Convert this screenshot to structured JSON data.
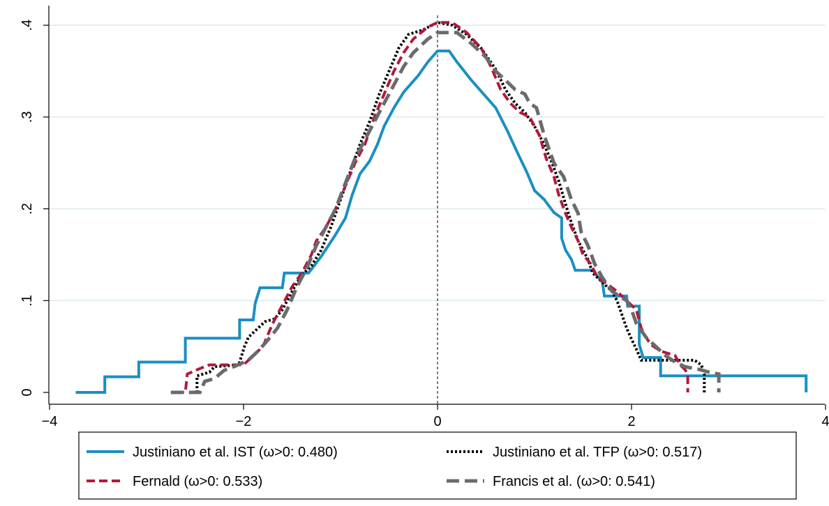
{
  "chart_data": {
    "type": "line",
    "title": "",
    "xlabel": "",
    "ylabel": "",
    "xlim": [
      -4,
      4
    ],
    "ylim": [
      0,
      0.4
    ],
    "x_ticks": [
      -4,
      -2,
      0,
      2,
      4
    ],
    "x_tick_labels": [
      "−4",
      "−2",
      "0",
      "2",
      "4"
    ],
    "y_ticks": [
      0,
      0.1,
      0.2,
      0.3,
      0.4
    ],
    "y_tick_labels": [
      "0",
      ".1",
      ".2",
      ".3",
      ".4"
    ],
    "grid": "horizontal",
    "reference_line": {
      "x": 0,
      "style": "dashed"
    },
    "legend_position": "bottom",
    "series": [
      {
        "name": "Justiniano et al. IST (ω>0: 0.480)",
        "color": "#1b8fc2",
        "style": "solid",
        "points": [
          [
            -3.73,
            0.0
          ],
          [
            -3.43,
            0.0
          ],
          [
            -3.43,
            0.017
          ],
          [
            -3.08,
            0.017
          ],
          [
            -3.08,
            0.033
          ],
          [
            -2.6,
            0.033
          ],
          [
            -2.6,
            0.059
          ],
          [
            -2.04,
            0.059
          ],
          [
            -2.04,
            0.079
          ],
          [
            -1.9,
            0.079
          ],
          [
            -1.88,
            0.097
          ],
          [
            -1.83,
            0.114
          ],
          [
            -1.6,
            0.114
          ],
          [
            -1.58,
            0.13
          ],
          [
            -1.33,
            0.13
          ],
          [
            -1.2,
            0.148
          ],
          [
            -1.05,
            0.172
          ],
          [
            -0.95,
            0.19
          ],
          [
            -0.88,
            0.215
          ],
          [
            -0.8,
            0.238
          ],
          [
            -0.7,
            0.252
          ],
          [
            -0.62,
            0.27
          ],
          [
            -0.55,
            0.29
          ],
          [
            -0.45,
            0.31
          ],
          [
            -0.35,
            0.327
          ],
          [
            -0.2,
            0.345
          ],
          [
            -0.1,
            0.36
          ],
          [
            0.0,
            0.372
          ],
          [
            0.12,
            0.372
          ],
          [
            0.2,
            0.36
          ],
          [
            0.35,
            0.34
          ],
          [
            0.5,
            0.322
          ],
          [
            0.6,
            0.31
          ],
          [
            0.72,
            0.285
          ],
          [
            0.82,
            0.262
          ],
          [
            0.92,
            0.24
          ],
          [
            1.0,
            0.22
          ],
          [
            1.1,
            0.21
          ],
          [
            1.2,
            0.196
          ],
          [
            1.28,
            0.19
          ],
          [
            1.28,
            0.168
          ],
          [
            1.32,
            0.155
          ],
          [
            1.38,
            0.145
          ],
          [
            1.42,
            0.133
          ],
          [
            1.6,
            0.133
          ],
          [
            1.7,
            0.12
          ],
          [
            1.72,
            0.105
          ],
          [
            1.95,
            0.105
          ],
          [
            1.96,
            0.094
          ],
          [
            2.08,
            0.094
          ],
          [
            2.08,
            0.052
          ],
          [
            2.12,
            0.038
          ],
          [
            2.3,
            0.038
          ],
          [
            2.3,
            0.018
          ],
          [
            3.8,
            0.018
          ],
          [
            3.8,
            0.0
          ]
        ]
      },
      {
        "name": "Justiniano et al. TFP (ω>0: 0.517)",
        "color": "#000000",
        "style": "dotted",
        "points": [
          [
            -2.48,
            0.0
          ],
          [
            -2.48,
            0.018
          ],
          [
            -2.35,
            0.022
          ],
          [
            -2.3,
            0.028
          ],
          [
            -2.05,
            0.03
          ],
          [
            -1.99,
            0.05
          ],
          [
            -1.95,
            0.06
          ],
          [
            -1.85,
            0.07
          ],
          [
            -1.78,
            0.077
          ],
          [
            -1.68,
            0.08
          ],
          [
            -1.6,
            0.09
          ],
          [
            -1.5,
            0.11
          ],
          [
            -1.4,
            0.128
          ],
          [
            -1.3,
            0.138
          ],
          [
            -1.2,
            0.155
          ],
          [
            -1.1,
            0.18
          ],
          [
            -1.0,
            0.21
          ],
          [
            -0.9,
            0.24
          ],
          [
            -0.8,
            0.27
          ],
          [
            -0.7,
            0.295
          ],
          [
            -0.6,
            0.325
          ],
          [
            -0.5,
            0.35
          ],
          [
            -0.4,
            0.375
          ],
          [
            -0.3,
            0.39
          ],
          [
            -0.15,
            0.395
          ],
          [
            0.0,
            0.403
          ],
          [
            0.15,
            0.4
          ],
          [
            0.3,
            0.39
          ],
          [
            0.45,
            0.375
          ],
          [
            0.6,
            0.352
          ],
          [
            0.7,
            0.33
          ],
          [
            0.8,
            0.315
          ],
          [
            0.9,
            0.305
          ],
          [
            1.0,
            0.29
          ],
          [
            1.1,
            0.27
          ],
          [
            1.18,
            0.25
          ],
          [
            1.25,
            0.23
          ],
          [
            1.32,
            0.205
          ],
          [
            1.38,
            0.185
          ],
          [
            1.45,
            0.165
          ],
          [
            1.55,
            0.145
          ],
          [
            1.6,
            0.13
          ],
          [
            1.7,
            0.12
          ],
          [
            1.8,
            0.11
          ],
          [
            1.85,
            0.1
          ],
          [
            1.9,
            0.085
          ],
          [
            1.95,
            0.07
          ],
          [
            2.0,
            0.058
          ],
          [
            2.05,
            0.047
          ],
          [
            2.1,
            0.035
          ],
          [
            2.3,
            0.035
          ],
          [
            2.5,
            0.035
          ],
          [
            2.65,
            0.035
          ],
          [
            2.72,
            0.03
          ],
          [
            2.75,
            0.02
          ],
          [
            2.75,
            0.0
          ]
        ]
      },
      {
        "name": "Fernald (ω>0: 0.533)",
        "color": "#b01a3c",
        "style": "dashed",
        "points": [
          [
            -2.7,
            0.0
          ],
          [
            -2.6,
            0.0
          ],
          [
            -2.58,
            0.02
          ],
          [
            -2.45,
            0.026
          ],
          [
            -2.35,
            0.03
          ],
          [
            -2.0,
            0.03
          ],
          [
            -1.9,
            0.04
          ],
          [
            -1.8,
            0.05
          ],
          [
            -1.7,
            0.075
          ],
          [
            -1.6,
            0.095
          ],
          [
            -1.5,
            0.115
          ],
          [
            -1.4,
            0.13
          ],
          [
            -1.3,
            0.15
          ],
          [
            -1.25,
            0.165
          ],
          [
            -1.15,
            0.18
          ],
          [
            -1.05,
            0.2
          ],
          [
            -0.95,
            0.225
          ],
          [
            -0.85,
            0.25
          ],
          [
            -0.75,
            0.27
          ],
          [
            -0.65,
            0.3
          ],
          [
            -0.55,
            0.325
          ],
          [
            -0.45,
            0.35
          ],
          [
            -0.35,
            0.37
          ],
          [
            -0.25,
            0.385
          ],
          [
            -0.1,
            0.398
          ],
          [
            0.0,
            0.403
          ],
          [
            0.15,
            0.403
          ],
          [
            0.3,
            0.392
          ],
          [
            0.45,
            0.375
          ],
          [
            0.55,
            0.355
          ],
          [
            0.65,
            0.33
          ],
          [
            0.75,
            0.315
          ],
          [
            0.85,
            0.305
          ],
          [
            0.95,
            0.3
          ],
          [
            1.05,
            0.28
          ],
          [
            1.12,
            0.255
          ],
          [
            1.2,
            0.235
          ],
          [
            1.25,
            0.215
          ],
          [
            1.32,
            0.195
          ],
          [
            1.38,
            0.18
          ],
          [
            1.45,
            0.165
          ],
          [
            1.5,
            0.15
          ],
          [
            1.58,
            0.14
          ],
          [
            1.65,
            0.125
          ],
          [
            1.75,
            0.118
          ],
          [
            1.85,
            0.11
          ],
          [
            1.95,
            0.1
          ],
          [
            2.05,
            0.09
          ],
          [
            2.1,
            0.07
          ],
          [
            2.15,
            0.06
          ],
          [
            2.2,
            0.052
          ],
          [
            2.3,
            0.045
          ],
          [
            2.45,
            0.04
          ],
          [
            2.5,
            0.03
          ],
          [
            2.55,
            0.025
          ],
          [
            2.58,
            0.02
          ],
          [
            2.58,
            0.0
          ]
        ]
      },
      {
        "name": "Francis et al. (ω>0: 0.541)",
        "color": "#6b6b6b",
        "style": "longdash",
        "points": [
          [
            -2.75,
            0.0
          ],
          [
            -2.45,
            0.0
          ],
          [
            -2.4,
            0.012
          ],
          [
            -2.3,
            0.015
          ],
          [
            -2.2,
            0.024
          ],
          [
            -2.1,
            0.028
          ],
          [
            -1.95,
            0.035
          ],
          [
            -1.85,
            0.045
          ],
          [
            -1.75,
            0.057
          ],
          [
            -1.65,
            0.07
          ],
          [
            -1.55,
            0.09
          ],
          [
            -1.45,
            0.115
          ],
          [
            -1.35,
            0.135
          ],
          [
            -1.25,
            0.16
          ],
          [
            -1.15,
            0.18
          ],
          [
            -1.05,
            0.2
          ],
          [
            -0.95,
            0.228
          ],
          [
            -0.85,
            0.255
          ],
          [
            -0.75,
            0.275
          ],
          [
            -0.65,
            0.295
          ],
          [
            -0.55,
            0.315
          ],
          [
            -0.45,
            0.335
          ],
          [
            -0.35,
            0.355
          ],
          [
            -0.25,
            0.37
          ],
          [
            -0.1,
            0.385
          ],
          [
            0.0,
            0.392
          ],
          [
            0.2,
            0.392
          ],
          [
            0.35,
            0.38
          ],
          [
            0.5,
            0.365
          ],
          [
            0.6,
            0.35
          ],
          [
            0.7,
            0.34
          ],
          [
            0.8,
            0.33
          ],
          [
            0.9,
            0.325
          ],
          [
            0.95,
            0.315
          ],
          [
            1.02,
            0.31
          ],
          [
            1.1,
            0.28
          ],
          [
            1.2,
            0.25
          ],
          [
            1.3,
            0.235
          ],
          [
            1.38,
            0.21
          ],
          [
            1.45,
            0.195
          ],
          [
            1.48,
            0.175
          ],
          [
            1.55,
            0.16
          ],
          [
            1.62,
            0.14
          ],
          [
            1.7,
            0.125
          ],
          [
            1.8,
            0.11
          ],
          [
            1.95,
            0.1
          ],
          [
            2.0,
            0.09
          ],
          [
            2.05,
            0.075
          ],
          [
            2.15,
            0.06
          ],
          [
            2.25,
            0.05
          ],
          [
            2.35,
            0.04
          ],
          [
            2.45,
            0.033
          ],
          [
            2.55,
            0.028
          ],
          [
            2.7,
            0.025
          ],
          [
            2.8,
            0.022
          ],
          [
            2.9,
            0.02
          ],
          [
            2.9,
            0.0
          ]
        ]
      }
    ]
  }
}
